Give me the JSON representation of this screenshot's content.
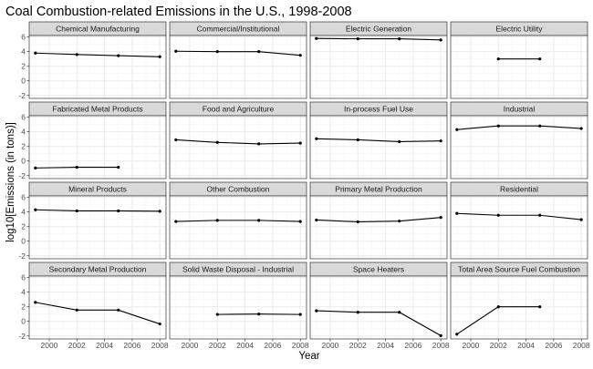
{
  "chart_data": {
    "type": "line",
    "title": "Coal Combustion-related Emissions in the U.S., 1998-2008",
    "xlabel": "Year",
    "ylabel": "log10[Emissions (in tons)]",
    "xlim": [
      1998.55,
      2008.45
    ],
    "ylim": [
      -2.4,
      6.2
    ],
    "x_ticks": [
      2000,
      2002,
      2004,
      2006,
      2008
    ],
    "y_ticks": [
      -2,
      0,
      2,
      4,
      6
    ],
    "grid": true,
    "layout": "facet grid, 4 rows x 4 columns, shared axes",
    "colors": {
      "line": "#000000",
      "strip_fill": "#d9d9d9",
      "grid_major": "#ebebeb",
      "grid_minor": "#f5f5f5",
      "panel_border": "#333333"
    },
    "panels": [
      {
        "name": "Chemical Manufacturing",
        "points": [
          [
            1999,
            3.8
          ],
          [
            2002,
            3.6
          ],
          [
            2005,
            3.45
          ],
          [
            2008,
            3.3
          ]
        ]
      },
      {
        "name": "Commercial/Institutional",
        "points": [
          [
            1999,
            4.05
          ],
          [
            2002,
            4.0
          ],
          [
            2005,
            4.0
          ],
          [
            2008,
            3.5
          ]
        ]
      },
      {
        "name": "Electric Generation",
        "points": [
          [
            1999,
            5.8
          ],
          [
            2002,
            5.75
          ],
          [
            2005,
            5.75
          ],
          [
            2008,
            5.6
          ]
        ]
      },
      {
        "name": "Electric Utility",
        "points": [
          [
            2002,
            3.0
          ],
          [
            2005,
            3.0
          ]
        ]
      },
      {
        "name": "Fabricated Metal Products",
        "points": [
          [
            1999,
            -0.95
          ],
          [
            2002,
            -0.85
          ],
          [
            2005,
            -0.85
          ]
        ]
      },
      {
        "name": "Food and Agriculture",
        "points": [
          [
            1999,
            2.9
          ],
          [
            2002,
            2.55
          ],
          [
            2005,
            2.35
          ],
          [
            2008,
            2.45
          ]
        ]
      },
      {
        "name": "In-process Fuel Use",
        "points": [
          [
            1999,
            3.05
          ],
          [
            2002,
            2.9
          ],
          [
            2005,
            2.65
          ],
          [
            2008,
            2.75
          ]
        ]
      },
      {
        "name": "Industrial",
        "points": [
          [
            1999,
            4.3
          ],
          [
            2002,
            4.8
          ],
          [
            2005,
            4.8
          ],
          [
            2008,
            4.45
          ]
        ]
      },
      {
        "name": "Mineral Products",
        "points": [
          [
            1999,
            4.3
          ],
          [
            2002,
            4.15
          ],
          [
            2005,
            4.15
          ],
          [
            2008,
            4.1
          ]
        ]
      },
      {
        "name": "Other Combustion",
        "points": [
          [
            1999,
            2.7
          ],
          [
            2002,
            2.85
          ],
          [
            2005,
            2.85
          ],
          [
            2008,
            2.7
          ]
        ]
      },
      {
        "name": "Primary Metal Production",
        "points": [
          [
            1999,
            2.9
          ],
          [
            2002,
            2.65
          ],
          [
            2005,
            2.75
          ],
          [
            2008,
            3.25
          ]
        ]
      },
      {
        "name": "Residential",
        "points": [
          [
            1999,
            3.8
          ],
          [
            2002,
            3.55
          ],
          [
            2005,
            3.55
          ],
          [
            2008,
            2.95
          ]
        ]
      },
      {
        "name": "Secondary Metal Production",
        "points": [
          [
            1999,
            2.6
          ],
          [
            2002,
            1.55
          ],
          [
            2005,
            1.55
          ],
          [
            2008,
            -0.35
          ]
        ]
      },
      {
        "name": "Solid Waste Disposal - Industrial",
        "points": [
          [
            2002,
            0.95
          ],
          [
            2005,
            1.0
          ],
          [
            2008,
            0.95
          ]
        ]
      },
      {
        "name": "Space Heaters",
        "points": [
          [
            1999,
            1.45
          ],
          [
            2002,
            1.25
          ],
          [
            2005,
            1.25
          ],
          [
            2008,
            -1.95
          ]
        ]
      },
      {
        "name": "Total Area Source Fuel Combustion",
        "points": [
          [
            1999,
            -1.75
          ],
          [
            2002,
            2.0
          ],
          [
            2005,
            2.0
          ]
        ]
      }
    ]
  }
}
